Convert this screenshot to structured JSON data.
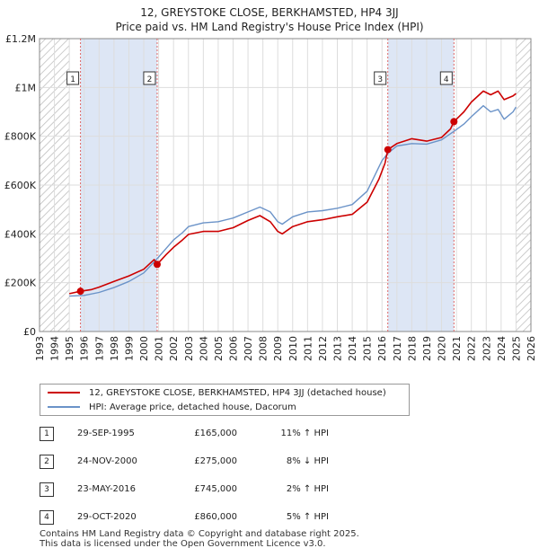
{
  "header": {
    "title_line1": "12, GREYSTOKE CLOSE, BERKHAMSTED, HP4 3JJ",
    "title_line2": "Price paid vs. HM Land Registry's House Price Index (HPI)"
  },
  "legend": {
    "property_label": "12, GREYSTOKE CLOSE, BERKHAMSTED, HP4 3JJ (detached house)",
    "hpi_label": "HPI: Average price, detached house, Dacorum"
  },
  "sales": [
    {
      "num": "1",
      "date": "29-SEP-1995",
      "price": "£165,000",
      "hpi_rel": "11% ↑ HPI"
    },
    {
      "num": "2",
      "date": "24-NOV-2000",
      "price": "£275,000",
      "hpi_rel": "8% ↓ HPI"
    },
    {
      "num": "3",
      "date": "23-MAY-2016",
      "price": "£745,000",
      "hpi_rel": "2% ↑ HPI"
    },
    {
      "num": "4",
      "date": "29-OCT-2020",
      "price": "£860,000",
      "hpi_rel": "5% ↑ HPI"
    }
  ],
  "footer": {
    "line1": "Contains HM Land Registry data © Copyright and database right 2025.",
    "line2": "This data is licensed under the Open Government Licence v3.0."
  },
  "colors": {
    "property_line": "#cc0000",
    "hpi_line": "#6b93c8",
    "shade": "#dde6f5",
    "hatch": "#bbbbbb",
    "grid": "#dddddd",
    "marker_line": "#dd6666"
  },
  "chart_data": {
    "type": "line",
    "title": "Price paid vs. HM Land Registry's House Price Index (HPI)",
    "xlabel": "",
    "ylabel": "",
    "xlim": [
      1993,
      2026
    ],
    "ylim": [
      0,
      1200000
    ],
    "x_ticks": [
      1993,
      1994,
      1995,
      1996,
      1997,
      1998,
      1999,
      2000,
      2001,
      2002,
      2003,
      2004,
      2005,
      2006,
      2007,
      2008,
      2009,
      2010,
      2011,
      2012,
      2013,
      2014,
      2015,
      2016,
      2017,
      2018,
      2019,
      2020,
      2021,
      2022,
      2023,
      2024,
      2025,
      2026
    ],
    "y_ticks": [
      0,
      200000,
      400000,
      600000,
      800000,
      1000000,
      1200000
    ],
    "y_tick_labels": [
      "£0",
      "£200K",
      "£400K",
      "£600K",
      "£800K",
      "£1M",
      "£1.2M"
    ],
    "hatched_ranges": [
      [
        1993,
        1995.0
      ],
      [
        2025.0,
        2026
      ]
    ],
    "shaded_ranges": [
      [
        1995.75,
        2000.9
      ],
      [
        2016.39,
        2020.83
      ]
    ],
    "sale_markers": [
      {
        "label": "1",
        "x": 1995.75,
        "y": 165000
      },
      {
        "label": "2",
        "x": 2000.9,
        "y": 275000
      },
      {
        "label": "3",
        "x": 2016.39,
        "y": 745000
      },
      {
        "label": "4",
        "x": 2020.83,
        "y": 860000
      }
    ],
    "series": [
      {
        "name": "12, GREYSTOKE CLOSE, BERKHAMSTED, HP4 3JJ (detached house)",
        "x": [
          1995.0,
          1995.75,
          1996.5,
          1997.0,
          1998.0,
          1999.0,
          2000.0,
          2000.7,
          2000.9,
          2001.5,
          2002.0,
          2002.6,
          2003.0,
          2004.0,
          2005.0,
          2006.0,
          2007.0,
          2007.8,
          2008.5,
          2009.0,
          2009.3,
          2010.0,
          2011.0,
          2012.0,
          2013.0,
          2014.0,
          2015.0,
          2015.8,
          2016.2,
          2016.39,
          2017.0,
          2018.0,
          2019.0,
          2020.0,
          2020.6,
          2020.83,
          2021.5,
          2022.0,
          2022.8,
          2023.3,
          2023.8,
          2024.2,
          2024.8,
          2025.0
        ],
        "values": [
          155000,
          165000,
          172000,
          182000,
          205000,
          228000,
          255000,
          295000,
          275000,
          315000,
          345000,
          375000,
          398000,
          410000,
          410000,
          425000,
          455000,
          475000,
          450000,
          410000,
          400000,
          430000,
          450000,
          458000,
          470000,
          480000,
          530000,
          625000,
          690000,
          745000,
          770000,
          790000,
          780000,
          795000,
          830000,
          860000,
          900000,
          940000,
          985000,
          970000,
          985000,
          950000,
          965000,
          975000
        ]
      },
      {
        "name": "HPI: Average price, detached house, Dacorum",
        "x": [
          1995.0,
          1996.0,
          1997.0,
          1998.0,
          1999.0,
          2000.0,
          2000.9,
          2001.5,
          2002.0,
          2002.6,
          2003.0,
          2004.0,
          2005.0,
          2006.0,
          2007.0,
          2007.8,
          2008.5,
          2009.0,
          2009.3,
          2010.0,
          2011.0,
          2012.0,
          2013.0,
          2014.0,
          2015.0,
          2016.0,
          2016.39,
          2017.0,
          2018.0,
          2019.0,
          2020.0,
          2020.83,
          2021.5,
          2022.0,
          2022.8,
          2023.3,
          2023.8,
          2024.2,
          2024.8,
          2025.0
        ],
        "values": [
          145000,
          148000,
          160000,
          180000,
          205000,
          240000,
          298000,
          340000,
          375000,
          405000,
          430000,
          445000,
          450000,
          465000,
          490000,
          510000,
          490000,
          450000,
          440000,
          470000,
          490000,
          495000,
          505000,
          520000,
          575000,
          700000,
          730000,
          760000,
          770000,
          768000,
          785000,
          820000,
          850000,
          880000,
          925000,
          900000,
          910000,
          870000,
          900000,
          920000
        ]
      }
    ]
  }
}
